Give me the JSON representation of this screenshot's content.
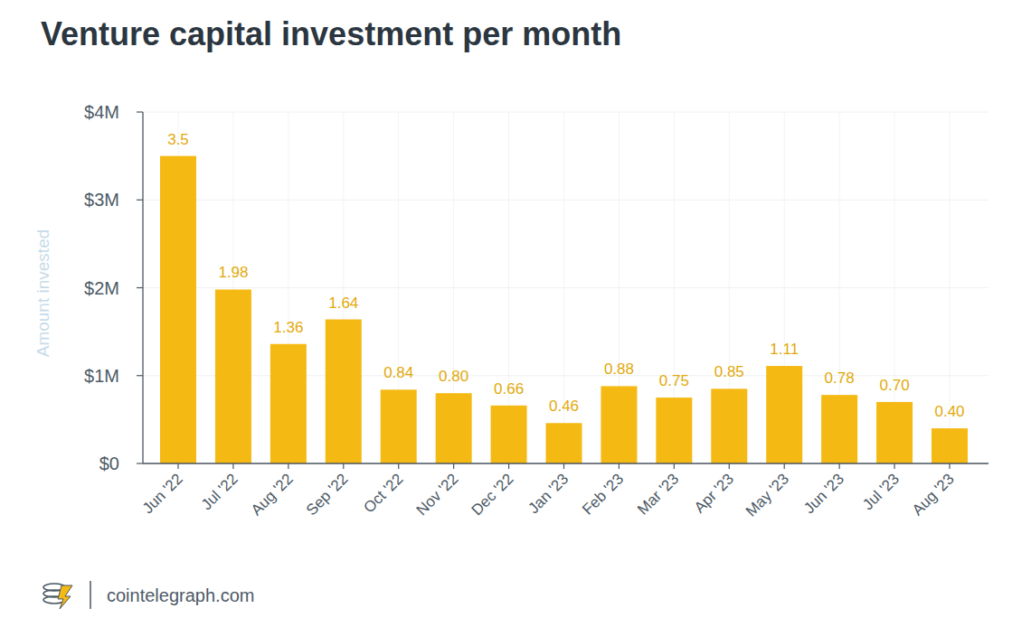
{
  "chart_data": {
    "type": "bar",
    "title": "Venture capital investment per month",
    "y_label": "Amount invested",
    "source": "cointelegraph.com",
    "categories": [
      "Jun '22",
      "Jul '22",
      "Aug '22",
      "Sep '22",
      "Oct '22",
      "Nov '22",
      "Dec '22",
      "Jan '23",
      "Feb '23",
      "Mar '23",
      "Apr '23",
      "May '23",
      "Jun '23",
      "Jul '23",
      "Aug '23"
    ],
    "values": [
      3.5,
      1.98,
      1.36,
      1.64,
      0.84,
      0.8,
      0.66,
      0.46,
      0.88,
      0.75,
      0.85,
      1.11,
      0.78,
      0.7,
      0.4
    ],
    "value_labels": [
      "3.5",
      "1.98",
      "1.36",
      "1.64",
      "0.84",
      "0.80",
      "0.66",
      "0.46",
      "0.88",
      "0.75",
      "0.85",
      "1.11",
      "0.78",
      "0.70",
      "0.40"
    ],
    "color": "#f5b914",
    "ylim": [
      0,
      4
    ],
    "yticks": [
      {
        "value": 0,
        "label": "$0"
      },
      {
        "value": 1,
        "label": "$1M"
      },
      {
        "value": 2,
        "label": "$2M"
      },
      {
        "value": 3,
        "label": "$3M"
      },
      {
        "value": 4,
        "label": "$4M"
      }
    ],
    "grid": true,
    "data_labels": true
  }
}
